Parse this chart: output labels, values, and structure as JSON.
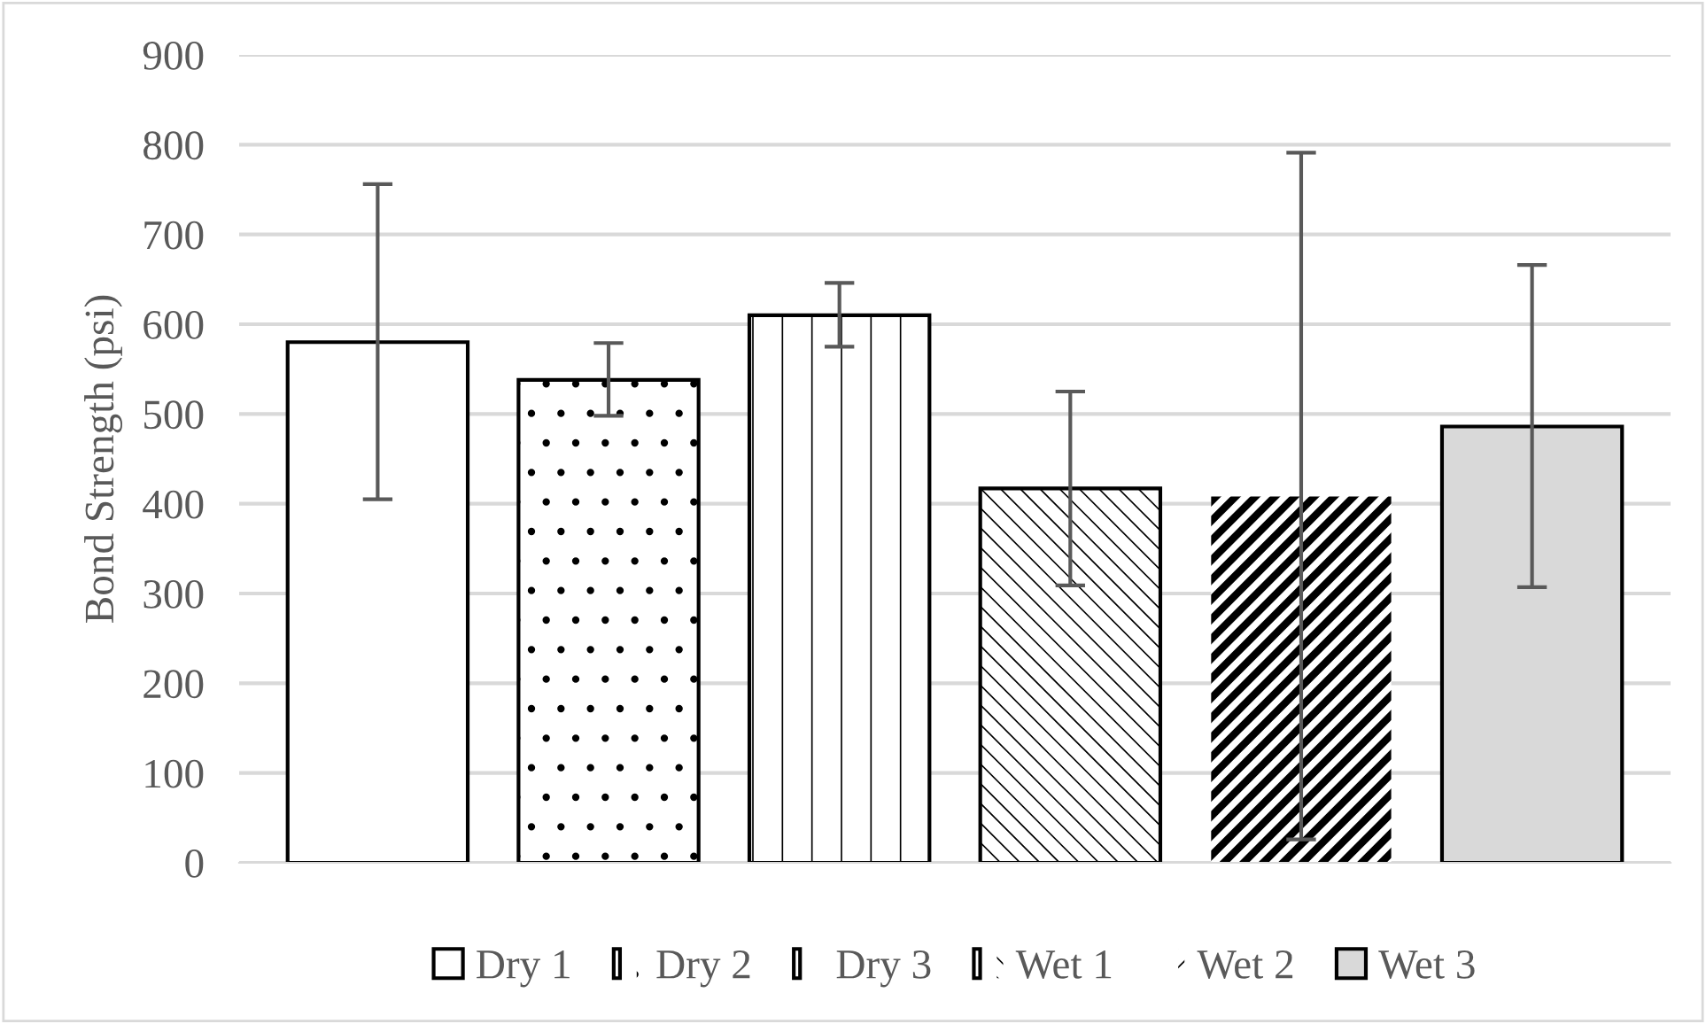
{
  "chart_data": {
    "type": "bar",
    "ylabel": "Bond Strength (psi)",
    "categories": [
      null,
      null,
      null,
      null,
      null,
      null
    ],
    "series": [
      {
        "name": "Dry 1",
        "color": "#ffffff",
        "values": [
          580,
          null,
          null,
          null,
          null,
          null
        ],
        "errors": [
          [
            405,
            756
          ],
          null,
          null,
          null,
          null,
          null
        ]
      },
      {
        "name": "Dry 2",
        "color": "#ffffff",
        "values": [
          null,
          538,
          null,
          null,
          null,
          null
        ],
        "errors": [
          null,
          [
            498,
            579
          ],
          null,
          null,
          null,
          null
        ]
      },
      {
        "name": "Dry 3",
        "color": "#ffffff",
        "values": [
          null,
          null,
          610,
          null,
          null,
          null
        ],
        "errors": [
          null,
          null,
          [
            575,
            646
          ],
          null,
          null,
          null
        ]
      },
      {
        "name": "Wet 1",
        "color": "#ffffff",
        "values": [
          null,
          null,
          null,
          417,
          null,
          null
        ],
        "errors": [
          null,
          null,
          null,
          [
            309,
            525
          ],
          null,
          null
        ]
      },
      {
        "name": "Wet 2",
        "color": "#ffffff",
        "values": [
          null,
          null,
          null,
          null,
          408,
          null
        ],
        "errors": [
          null,
          null,
          null,
          null,
          [
            26,
            791
          ],
          null
        ]
      },
      {
        "name": "Wet 3",
        "color": "#d9d9d9",
        "values": [
          null,
          null,
          null,
          null,
          null,
          486
        ],
        "errors": [
          null,
          null,
          null,
          null,
          null,
          [
            307,
            666
          ]
        ]
      }
    ],
    "ylim": [
      0,
      900
    ],
    "yticks": [
      0,
      100,
      200,
      300,
      400,
      500,
      600,
      700,
      800,
      900
    ],
    "grid": "y",
    "legend": "bottom"
  }
}
